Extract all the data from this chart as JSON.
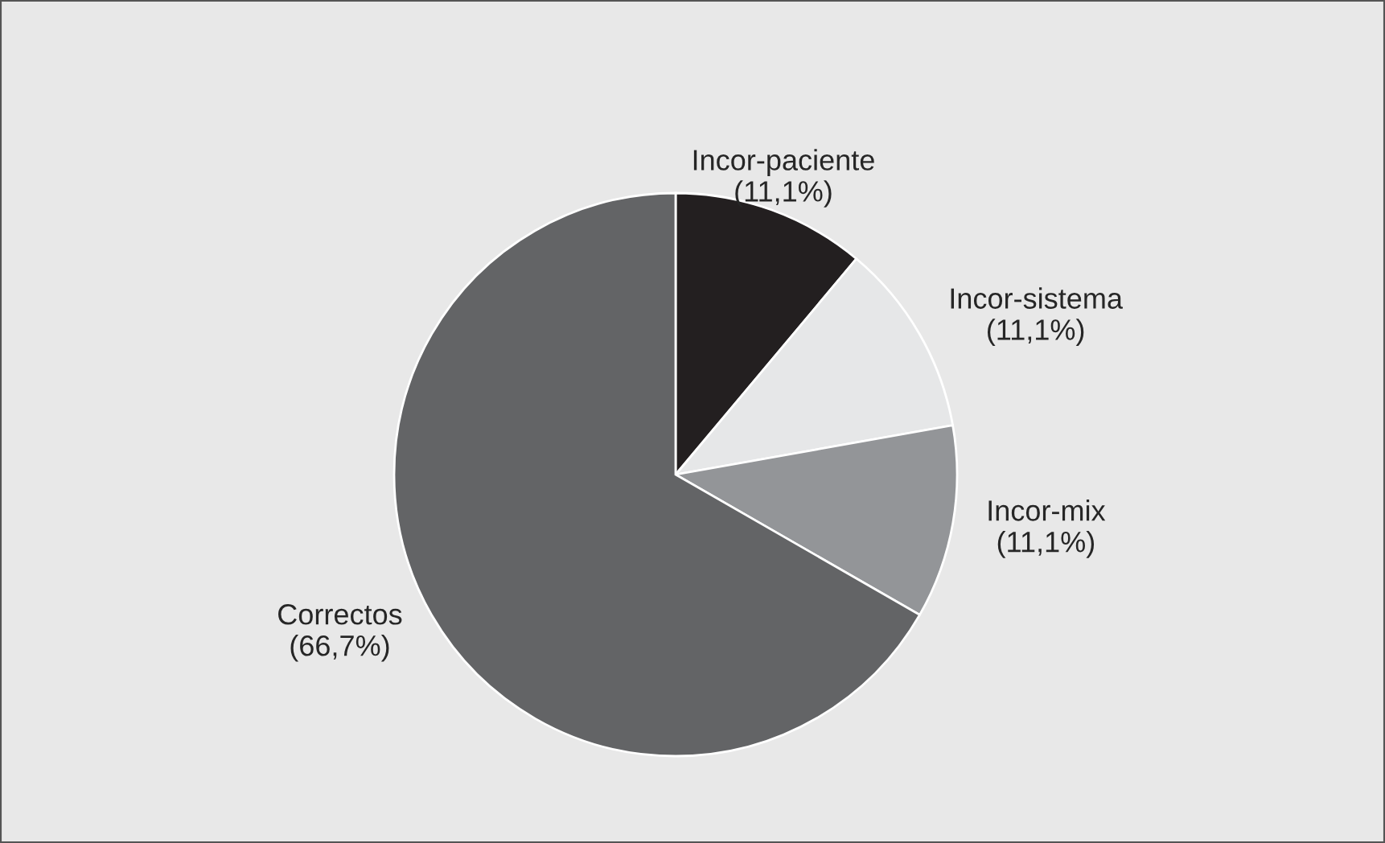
{
  "chart_data": {
    "type": "pie",
    "categories": [
      "Incor-paciente",
      "Incor-sistema",
      "Incor-mix",
      "Correctos"
    ],
    "values": [
      11.1,
      11.1,
      11.1,
      66.7
    ],
    "colors": [
      "#231f20",
      "#e6e7e8",
      "#939598",
      "#636466"
    ],
    "value_labels": [
      "(11,1%)",
      "(11,1%)",
      "(11,1%)",
      "(66,7%)"
    ]
  }
}
